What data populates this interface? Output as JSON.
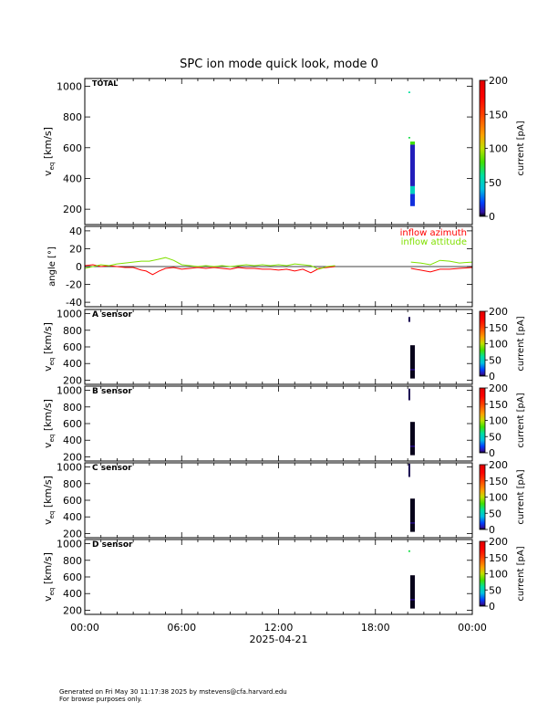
{
  "title": "SPC ion mode quick look, mode 0",
  "footer": {
    "line1": "Generated on Fri May 30 11:17:38 2025 by mstevens@cfa.harvard.edu",
    "line2": "For browse purposes only."
  },
  "chart_data": [
    {
      "type": "heatmap",
      "panel_label": "TOTAL",
      "ylabel_main": "v",
      "ylabel_sub": "eq",
      "ylabel_unit": "[km/s]",
      "yticks": [
        200,
        400,
        600,
        800,
        1000
      ],
      "ylim": [
        100,
        1050
      ],
      "colorbar": {
        "label": "current [pA]",
        "range": [
          0,
          200
        ],
        "ticks": [
          0,
          50,
          100,
          150,
          200
        ]
      },
      "cells": [
        {
          "t": 20.3,
          "v0": 220,
          "v1": 300,
          "level": 15
        },
        {
          "t": 20.3,
          "v0": 300,
          "v1": 350,
          "level": 50
        },
        {
          "t": 20.3,
          "v0": 350,
          "v1": 620,
          "level": 10
        },
        {
          "t": 20.3,
          "v0": 620,
          "v1": 640,
          "level": 80
        },
        {
          "t": 20.1,
          "v0": 660,
          "v1": 670,
          "level": 70
        },
        {
          "t": 20.1,
          "v0": 955,
          "v1": 965,
          "level": 60
        }
      ]
    },
    {
      "type": "line",
      "ylabel": "angle [°]",
      "yticks": [
        -40,
        -20,
        0,
        20,
        40
      ],
      "ylim": [
        -45,
        45
      ],
      "series": [
        {
          "name": "inflow azimuth",
          "color": "#ff0000",
          "t": [
            0,
            0.5,
            1,
            1.5,
            2,
            2.5,
            3,
            3.5,
            3.8,
            4.2,
            4.6,
            5,
            5.5,
            6,
            6.5,
            7,
            7.5,
            8,
            8.5,
            9,
            9.5,
            10,
            10.5,
            11,
            11.5,
            12,
            12.5,
            13,
            13.5,
            14,
            14.5,
            15,
            15.5
          ],
          "y": [
            1,
            2,
            0,
            1,
            0,
            -1,
            -1,
            -4,
            -5,
            -9,
            -5,
            -2,
            -1,
            -3,
            -2,
            -1,
            -2,
            -1,
            -2,
            -3,
            -1,
            -2,
            -2,
            -3,
            -3,
            -4,
            -3,
            -5,
            -3,
            -7,
            -2,
            -1,
            0
          ]
        },
        {
          "name": "inflow azimuth",
          "color": "#ff0000",
          "t": [
            20.2,
            20.8,
            21.4,
            22,
            22.6,
            23.2,
            24
          ],
          "y": [
            -2,
            -4,
            -6,
            -3,
            -3,
            -2,
            -1
          ]
        },
        {
          "name": "inflow attitude",
          "color": "#80e000",
          "t": [
            0,
            0.5,
            1,
            1.5,
            2,
            2.5,
            3,
            3.5,
            4,
            4.5,
            5,
            5.5,
            6,
            6.5,
            7,
            7.5,
            8,
            8.5,
            9,
            9.5,
            10,
            10.5,
            11,
            11.5,
            12,
            12.5,
            13,
            13.5,
            14,
            14.5,
            15,
            15.5
          ],
          "y": [
            -2,
            0,
            2,
            1,
            3,
            4,
            5,
            6,
            6,
            8,
            10,
            7,
            2,
            1,
            0,
            1,
            0,
            1,
            0,
            1,
            2,
            1,
            2,
            1,
            2,
            1,
            3,
            2,
            1,
            -3,
            0,
            1
          ]
        },
        {
          "name": "inflow attitude",
          "color": "#80e000",
          "t": [
            20.2,
            20.8,
            21.4,
            22,
            22.6,
            23.2,
            24
          ],
          "y": [
            5,
            4,
            2,
            7,
            6,
            4,
            5
          ]
        }
      ],
      "legend": [
        {
          "label": "inflow azimuth",
          "color": "#ff0000"
        },
        {
          "label": "inflow attitude",
          "color": "#80e000"
        }
      ]
    },
    {
      "type": "heatmap",
      "panel_label": "A sensor",
      "ylabel_main": "v",
      "ylabel_sub": "eq",
      "ylabel_unit": "[km/s]",
      "yticks": [
        200,
        400,
        600,
        800,
        1000
      ],
      "ylim": [
        150,
        1050
      ],
      "colorbar": {
        "label": "current [pA]",
        "range": [
          0,
          200
        ],
        "ticks": [
          0,
          50,
          100,
          150,
          200
        ]
      },
      "cells": [
        {
          "t": 20.3,
          "v0": 220,
          "v1": 620,
          "level": 1
        },
        {
          "t": 20.3,
          "v0": 320,
          "v1": 335,
          "level": 5
        },
        {
          "t": 20.1,
          "v0": 900,
          "v1": 960,
          "level": 3
        }
      ]
    },
    {
      "type": "heatmap",
      "panel_label": "B sensor",
      "ylabel_main": "v",
      "ylabel_sub": "eq",
      "ylabel_unit": "[km/s]",
      "yticks": [
        200,
        400,
        600,
        800,
        1000
      ],
      "ylim": [
        150,
        1050
      ],
      "colorbar": {
        "label": "current [pA]",
        "range": [
          0,
          200
        ],
        "ticks": [
          0,
          50,
          100,
          150,
          200
        ]
      },
      "cells": [
        {
          "t": 20.3,
          "v0": 220,
          "v1": 620,
          "level": 1
        },
        {
          "t": 20.3,
          "v0": 320,
          "v1": 335,
          "level": 5
        },
        {
          "t": 20.1,
          "v0": 880,
          "v1": 1020,
          "level": 3
        }
      ]
    },
    {
      "type": "heatmap",
      "panel_label": "C sensor",
      "ylabel_main": "v",
      "ylabel_sub": "eq",
      "ylabel_unit": "[km/s]",
      "yticks": [
        200,
        400,
        600,
        800,
        1000
      ],
      "ylim": [
        150,
        1050
      ],
      "colorbar": {
        "label": "current [pA]",
        "range": [
          0,
          200
        ],
        "ticks": [
          0,
          50,
          100,
          150,
          200
        ]
      },
      "cells": [
        {
          "t": 20.3,
          "v0": 220,
          "v1": 620,
          "level": 1
        },
        {
          "t": 20.3,
          "v0": 320,
          "v1": 335,
          "level": 5
        },
        {
          "t": 20.1,
          "v0": 880,
          "v1": 1040,
          "level": 3
        }
      ]
    },
    {
      "type": "heatmap",
      "panel_label": "D sensor",
      "ylabel_main": "v",
      "ylabel_sub": "eq",
      "ylabel_unit": "[km/s]",
      "yticks": [
        200,
        400,
        600,
        800,
        1000
      ],
      "ylim": [
        150,
        1050
      ],
      "colorbar": {
        "label": "current [pA]",
        "range": [
          0,
          200
        ],
        "ticks": [
          0,
          50,
          100,
          150,
          200
        ]
      },
      "cells": [
        {
          "t": 20.3,
          "v0": 220,
          "v1": 620,
          "level": 1
        },
        {
          "t": 20.3,
          "v0": 320,
          "v1": 335,
          "level": 5
        },
        {
          "t": 20.1,
          "v0": 900,
          "v1": 920,
          "level": 70
        }
      ]
    }
  ],
  "xaxis": {
    "tick_labels": [
      "00:00",
      "06:00",
      "12:00",
      "18:00",
      "00:00"
    ],
    "tick_values": [
      0,
      6,
      12,
      18,
      24
    ],
    "xlim": [
      0,
      24
    ],
    "date_label": "2025-04-21"
  }
}
